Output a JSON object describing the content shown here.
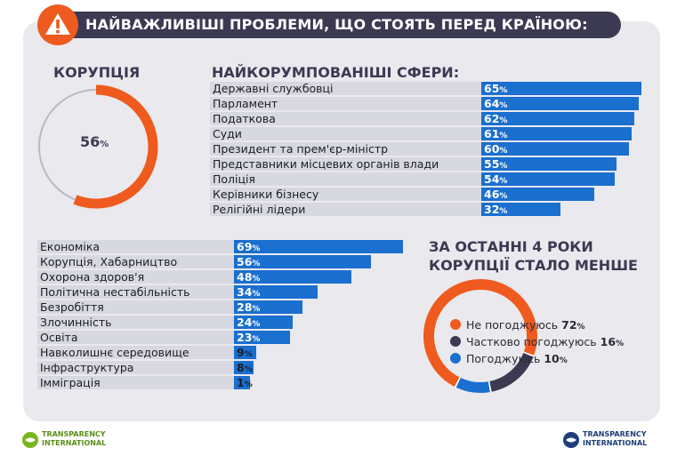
{
  "header": {
    "title": "НАЙВАЖЛИВІШІ ПРОБЛЕМИ, ЩО СТОЯТЬ ПЕРЕД КРАЇНОЮ:"
  },
  "colors": {
    "accent_orange": "#ef5a1e",
    "bar_blue": "#1a6fcf",
    "dark": "#3b3a52",
    "light_blue": "#2b8fe8"
  },
  "chart_data": [
    {
      "type": "pie",
      "title": "КОРУПЦІЯ",
      "values": [
        56
      ],
      "value_label": "56",
      "unit": "%"
    },
    {
      "type": "bar",
      "title": "НАЙКОРУМПОВАНІШІ СФЕРИ:",
      "categories": [
        "Державні службовці",
        "Парламент",
        "Податкова",
        "Суди",
        "Президент та прем'єр-міністр",
        "Представники місцевих органів влади",
        "Поліція",
        "Керівники бізнесу",
        "Релігійні лідери"
      ],
      "values": [
        65,
        64,
        62,
        61,
        60,
        55,
        54,
        46,
        32
      ],
      "unit": "%"
    },
    {
      "type": "bar",
      "title": "",
      "categories": [
        "Економіка",
        "Корупція, Хабарництво",
        "Охорона здоров'я",
        "Політична нестабільність",
        "Безробіття",
        "Злочинність",
        "Освіта",
        "Навколишнє середовище",
        "Інфраструктура",
        "Імміграція"
      ],
      "values": [
        69,
        56,
        48,
        34,
        28,
        24,
        23,
        9,
        8,
        1
      ],
      "unit": "%"
    },
    {
      "type": "pie",
      "title_line1": "ЗА ОСТАННІ 4 РОКИ",
      "title_line2": "КОРУПЦІЇ СТАЛО МЕНШЕ",
      "categories": [
        "Не погоджуюсь",
        "Частково погоджуюсь",
        "Погоджуюсь"
      ],
      "values": [
        72,
        16,
        10
      ],
      "unit": "%",
      "colors": [
        "#ef5a1e",
        "#3b3a52",
        "#1a6fcf"
      ]
    }
  ],
  "footer": {
    "logo_left_line1": "TRANSPARENCY",
    "logo_left_line2": "INTERNATIONAL",
    "logo_right_line1": "TRANSPARENCY",
    "logo_right_line2": "INTERNATIONAL"
  }
}
